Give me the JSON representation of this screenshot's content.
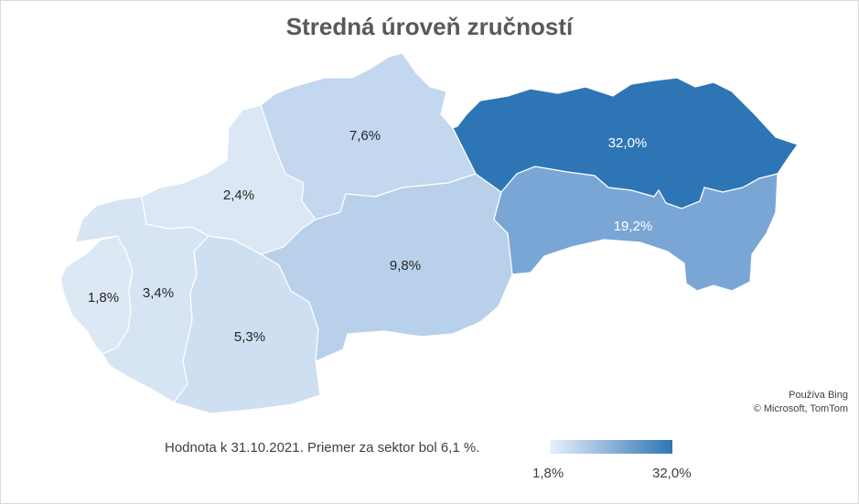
{
  "title": "Stredná úroveň zručností",
  "note": "Hodnota k 31.10.2021. Priemer za sektor bol 6,1 %.",
  "credit": {
    "line1": "Používa Bing",
    "line2": "© Microsoft, TomTom"
  },
  "legend": {
    "min": "1,8%",
    "max": "32,0%",
    "color_min": "#e8f0fa",
    "color_max": "#2e75b6"
  },
  "regions": [
    {
      "id": "bratislava",
      "label": "1,8%",
      "value": 1.8,
      "color": "#dde8f5"
    },
    {
      "id": "trnava",
      "label": "3,4%",
      "value": 3.4,
      "color": "#d6e4f3"
    },
    {
      "id": "trencin",
      "label": "2,4%",
      "value": 2.4,
      "color": "#dbe7f5"
    },
    {
      "id": "nitra",
      "label": "5,3%",
      "value": 5.3,
      "color": "#cedff1"
    },
    {
      "id": "zilina",
      "label": "7,6%",
      "value": 7.6,
      "color": "#c3d7ee"
    },
    {
      "id": "banska-bystrica",
      "label": "9,8%",
      "value": 9.8,
      "color": "#b8d0ea"
    },
    {
      "id": "presov",
      "label": "32,0%",
      "value": 32.0,
      "color": "#2e75b6"
    },
    {
      "id": "kosice",
      "label": "19,2%",
      "value": 19.2,
      "color": "#7aa6d6"
    }
  ]
}
